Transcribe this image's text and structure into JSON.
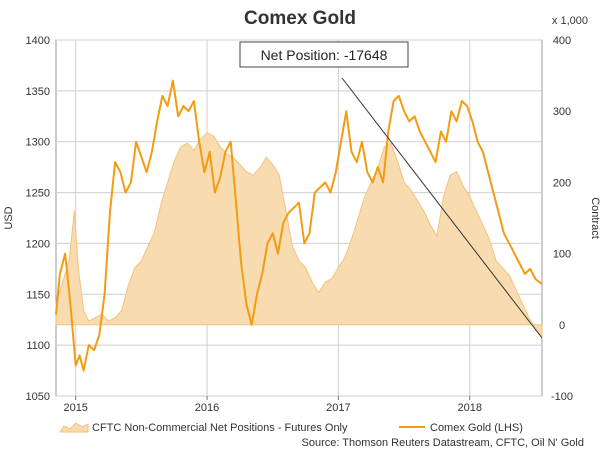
{
  "chart_data": {
    "type": "line",
    "title": "Comex Gold",
    "ylabel": "USD",
    "y2label": "Contract",
    "y2_unit_note": "x 1,000",
    "ylim": [
      1050,
      1400
    ],
    "y2lim": [
      -100,
      400
    ],
    "xlim": [
      2014.85,
      2018.55
    ],
    "y_ticks": [
      "1050",
      "1100",
      "1150",
      "1200",
      "1250",
      "1300",
      "1350",
      "1400"
    ],
    "y2_ticks": [
      "-100",
      "0",
      "100",
      "200",
      "300",
      "400"
    ],
    "x_ticks": [
      "2015",
      "2016",
      "2017",
      "2018"
    ],
    "annotation": "Net Position: -17648",
    "legend_position": "bottom",
    "source": "Source: Thomson Reuters Datastream, CFTC, Oil N' Gold",
    "colors": {
      "area_fill": "#f8dcb0",
      "area_line": "#f1c27e",
      "line": "#f39c12",
      "grid": "#cfcfcf"
    },
    "series": [
      {
        "name": "CFTC Non-Commercial Net Positions - Futures Only",
        "axis": "right",
        "kind": "area",
        "x": [
          2014.85,
          2014.9,
          2014.95,
          2014.99,
          2015.02,
          2015.06,
          2015.1,
          2015.15,
          2015.2,
          2015.25,
          2015.3,
          2015.35,
          2015.4,
          2015.45,
          2015.5,
          2015.55,
          2015.6,
          2015.65,
          2015.7,
          2015.75,
          2015.8,
          2015.85,
          2015.9,
          2015.95,
          2016.0,
          2016.05,
          2016.1,
          2016.15,
          2016.2,
          2016.25,
          2016.3,
          2016.35,
          2016.4,
          2016.45,
          2016.5,
          2016.55,
          2016.6,
          2016.65,
          2016.7,
          2016.75,
          2016.8,
          2016.85,
          2016.9,
          2016.95,
          2017.0,
          2017.05,
          2017.1,
          2017.15,
          2017.2,
          2017.25,
          2017.3,
          2017.35,
          2017.4,
          2017.45,
          2017.5,
          2017.55,
          2017.6,
          2017.65,
          2017.7,
          2017.75,
          2017.8,
          2017.85,
          2017.9,
          2017.95,
          2018.0,
          2018.05,
          2018.1,
          2018.15,
          2018.2,
          2018.25,
          2018.3,
          2018.35,
          2018.4,
          2018.45,
          2018.5,
          2018.55
        ],
        "values": [
          30,
          60,
          90,
          160,
          80,
          20,
          5,
          10,
          15,
          5,
          10,
          20,
          55,
          80,
          90,
          110,
          130,
          170,
          200,
          230,
          250,
          255,
          245,
          260,
          270,
          265,
          250,
          240,
          235,
          225,
          215,
          210,
          220,
          235,
          225,
          210,
          160,
          110,
          90,
          80,
          60,
          45,
          60,
          65,
          80,
          95,
          120,
          150,
          180,
          200,
          220,
          250,
          255,
          230,
          200,
          190,
          175,
          160,
          140,
          125,
          180,
          210,
          215,
          195,
          180,
          160,
          140,
          120,
          90,
          80,
          70,
          50,
          30,
          10,
          -5,
          -18
        ]
      },
      {
        "name": "Comex Gold (LHS)",
        "axis": "left",
        "kind": "line",
        "x": [
          2014.85,
          2014.88,
          2014.92,
          2014.96,
          2015.0,
          2015.03,
          2015.06,
          2015.1,
          2015.14,
          2015.18,
          2015.22,
          2015.26,
          2015.3,
          2015.34,
          2015.38,
          2015.42,
          2015.46,
          2015.5,
          2015.54,
          2015.58,
          2015.62,
          2015.66,
          2015.7,
          2015.74,
          2015.78,
          2015.82,
          2015.86,
          2015.9,
          2015.94,
          2015.98,
          2016.02,
          2016.06,
          2016.1,
          2016.14,
          2016.18,
          2016.22,
          2016.26,
          2016.3,
          2016.34,
          2016.38,
          2016.42,
          2016.46,
          2016.5,
          2016.54,
          2016.58,
          2016.62,
          2016.66,
          2016.7,
          2016.74,
          2016.78,
          2016.82,
          2016.86,
          2016.9,
          2016.94,
          2016.98,
          2017.02,
          2017.06,
          2017.1,
          2017.14,
          2017.18,
          2017.22,
          2017.26,
          2017.3,
          2017.34,
          2017.38,
          2017.42,
          2017.46,
          2017.5,
          2017.54,
          2017.58,
          2017.62,
          2017.66,
          2017.7,
          2017.74,
          2017.78,
          2017.82,
          2017.86,
          2017.9,
          2017.94,
          2017.98,
          2018.02,
          2018.06,
          2018.1,
          2018.14,
          2018.18,
          2018.22,
          2018.26,
          2018.3,
          2018.34,
          2018.38,
          2018.42,
          2018.46,
          2018.5,
          2018.55
        ],
        "values": [
          1130,
          1170,
          1190,
          1140,
          1080,
          1090,
          1075,
          1100,
          1095,
          1110,
          1150,
          1230,
          1280,
          1270,
          1250,
          1260,
          1300,
          1285,
          1270,
          1290,
          1320,
          1345,
          1335,
          1360,
          1325,
          1335,
          1330,
          1340,
          1300,
          1270,
          1290,
          1250,
          1265,
          1290,
          1300,
          1240,
          1180,
          1140,
          1120,
          1150,
          1170,
          1200,
          1210,
          1190,
          1220,
          1230,
          1235,
          1240,
          1200,
          1210,
          1250,
          1255,
          1260,
          1250,
          1270,
          1300,
          1330,
          1290,
          1280,
          1300,
          1270,
          1260,
          1275,
          1260,
          1310,
          1340,
          1345,
          1330,
          1320,
          1325,
          1310,
          1300,
          1290,
          1280,
          1310,
          1300,
          1330,
          1320,
          1340,
          1335,
          1320,
          1300,
          1290,
          1270,
          1250,
          1230,
          1210,
          1200,
          1190,
          1180,
          1170,
          1175,
          1165,
          1160
        ]
      }
    ]
  }
}
